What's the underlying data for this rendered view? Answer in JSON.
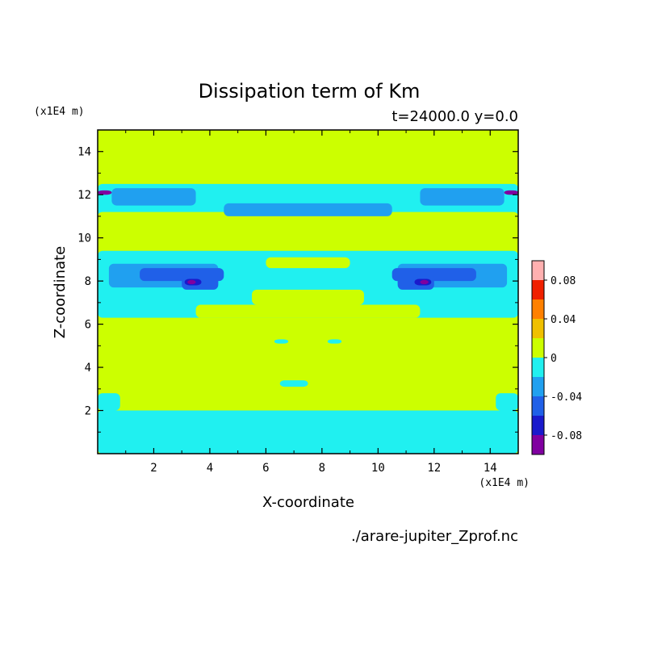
{
  "chart_data": {
    "type": "heatmap",
    "title": "Dissipation term of Km",
    "subtitle": "t=24000.0 y=0.0",
    "xlabel": "X-coordinate",
    "ylabel": "Z-coordinate",
    "x_unit": "(x1E4 m)",
    "y_unit": "(x1E4 m)",
    "source": "./arare-jupiter_Zprof.nc",
    "xlim": [
      0,
      15
    ],
    "ylim": [
      0,
      15
    ],
    "x_ticks": [
      2,
      4,
      6,
      8,
      10,
      12,
      14
    ],
    "y_ticks": [
      2,
      4,
      6,
      8,
      10,
      12,
      14
    ],
    "colorbar": {
      "levels": [
        -0.1,
        -0.08,
        -0.06,
        -0.04,
        -0.02,
        0,
        0.02,
        0.04,
        0.06,
        0.08,
        0.1
      ],
      "colors": [
        "#8000a0",
        "#1a1acc",
        "#2060e8",
        "#20a0f0",
        "#20f0f0",
        "#ccff00",
        "#f0c000",
        "#ff8000",
        "#f02000",
        "#ffb0b0"
      ],
      "tick_labels": [
        "0.08",
        "0.04",
        "0",
        "-0.04",
        "-0.08"
      ],
      "tick_values": [
        0.08,
        0.04,
        0,
        -0.04,
        -0.08
      ]
    },
    "regions": [
      {
        "level": -0.02,
        "x": [
          0,
          15
        ],
        "z": [
          0,
          2.0
        ]
      },
      {
        "level": -0.02,
        "x": [
          0,
          0.8
        ],
        "z": [
          2.0,
          2.8
        ]
      },
      {
        "level": -0.02,
        "x": [
          14.2,
          15
        ],
        "z": [
          2.0,
          2.8
        ]
      },
      {
        "level": -0.02,
        "x": [
          0,
          15
        ],
        "z": [
          6.3,
          9.4
        ]
      },
      {
        "level": -0.02,
        "x": [
          0,
          15
        ],
        "z": [
          10.9,
          12.5
        ]
      },
      {
        "level": -0.02,
        "x": [
          6.5,
          7.5
        ],
        "z": [
          3.1,
          3.4
        ]
      },
      {
        "level": -0.02,
        "x": [
          6.3,
          6.8
        ],
        "z": [
          5.1,
          5.3
        ]
      },
      {
        "level": -0.02,
        "x": [
          8.2,
          8.7
        ],
        "z": [
          5.1,
          5.3
        ]
      },
      {
        "level": 0.0,
        "x": [
          3.5,
          11.5
        ],
        "z": [
          6.3,
          6.9
        ]
      },
      {
        "level": 0.0,
        "x": [
          5.5,
          9.5
        ],
        "z": [
          6.9,
          7.6
        ]
      },
      {
        "level": 0.0,
        "x": [
          6.0,
          9.0
        ],
        "z": [
          8.6,
          9.1
        ]
      },
      {
        "level": 0.0,
        "x": [
          0,
          15
        ],
        "z": [
          10.8,
          11.2
        ]
      },
      {
        "level": -0.04,
        "x": [
          0.4,
          4.3
        ],
        "z": [
          7.7,
          8.8
        ]
      },
      {
        "level": -0.04,
        "x": [
          10.7,
          14.6
        ],
        "z": [
          7.7,
          8.8
        ]
      },
      {
        "level": -0.04,
        "x": [
          0.5,
          3.5
        ],
        "z": [
          11.5,
          12.3
        ]
      },
      {
        "level": -0.04,
        "x": [
          11.5,
          14.5
        ],
        "z": [
          11.5,
          12.3
        ]
      },
      {
        "level": -0.04,
        "x": [
          4.5,
          10.5
        ],
        "z": [
          11.0,
          11.6
        ]
      },
      {
        "level": -0.06,
        "x": [
          1.5,
          4.5
        ],
        "z": [
          8.0,
          8.6
        ]
      },
      {
        "level": -0.06,
        "x": [
          10.5,
          13.5
        ],
        "z": [
          8.0,
          8.6
        ]
      },
      {
        "level": -0.06,
        "x": [
          3.0,
          4.3
        ],
        "z": [
          7.6,
          8.3
        ]
      },
      {
        "level": -0.06,
        "x": [
          10.7,
          12.0
        ],
        "z": [
          7.6,
          8.3
        ]
      },
      {
        "level": -0.08,
        "x": [
          3.1,
          3.7
        ],
        "z": [
          7.8,
          8.1
        ]
      },
      {
        "level": -0.08,
        "x": [
          11.3,
          11.9
        ],
        "z": [
          7.8,
          8.1
        ]
      },
      {
        "level": -0.1,
        "x": [
          3.2,
          3.5
        ],
        "z": [
          7.85,
          8.05
        ]
      },
      {
        "level": -0.1,
        "x": [
          11.5,
          11.8
        ],
        "z": [
          7.85,
          8.05
        ]
      },
      {
        "level": -0.1,
        "x": [
          0,
          0.5
        ],
        "z": [
          12.0,
          12.2
        ]
      },
      {
        "level": -0.1,
        "x": [
          14.5,
          15
        ],
        "z": [
          12.0,
          12.2
        ]
      }
    ]
  }
}
